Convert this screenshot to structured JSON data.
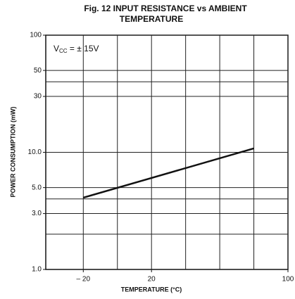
{
  "chart_data": {
    "type": "line",
    "title_lines": [
      "Fig. 12 INPUT RESISTANCE vs AMBIENT",
      "TEMPERATURE"
    ],
    "x_label": "TEMPERATURE (°C)",
    "y_label": "POWER CONSUMPTION (mW)",
    "annotation": {
      "main": "V",
      "sub": "CC",
      "rest": " = ± 15V"
    },
    "x": [
      -20,
      80
    ],
    "series": [
      {
        "color": "#111111",
        "values": [
          4.1,
          10.8
        ]
      }
    ],
    "xlim": [
      -42,
      100
    ],
    "xticks": [
      {
        "value": -20,
        "label": "– 20"
      },
      20,
      100
    ],
    "xgrid": [
      -20,
      0,
      20,
      40,
      60,
      80,
      100
    ],
    "ylim": [
      1,
      100
    ],
    "log_y": true,
    "yticks": [
      {
        "value": 1,
        "label": "1.0"
      },
      {
        "value": 3,
        "label": "3.0"
      },
      {
        "value": 5,
        "label": "5.0"
      },
      {
        "value": 10,
        "label": "10.0"
      },
      30,
      50,
      100
    ],
    "ygrid": [
      2,
      3,
      4,
      5,
      10,
      30,
      40,
      50,
      100
    ],
    "grid": true
  }
}
